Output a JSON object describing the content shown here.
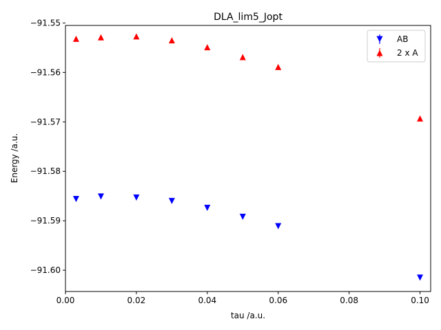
{
  "chart_data": {
    "type": "scatter",
    "title": "DLA_lim5_Jopt",
    "xlabel": "tau /a.u.",
    "ylabel": "Energy /a.u.",
    "xlim": [
      0.0,
      0.103
    ],
    "ylim": [
      -91.6043,
      -91.5505
    ],
    "x_ticks": [
      0.0,
      0.02,
      0.04,
      0.06,
      0.08,
      0.1
    ],
    "x_tick_labels": [
      "0.00",
      "0.02",
      "0.04",
      "0.06",
      "0.08",
      "0.10"
    ],
    "y_ticks": [
      -91.55,
      -91.56,
      -91.57,
      -91.58,
      -91.59,
      -91.6
    ],
    "y_tick_labels": [
      "−91.55",
      "−91.56",
      "−91.57",
      "−91.58",
      "−91.59",
      "−91.60"
    ],
    "grid": false,
    "legend_position": "upper right",
    "series": [
      {
        "name": "AB",
        "marker": "triangle-down",
        "color": "#0000ff",
        "points": [
          {
            "x": 0.003,
            "y": -91.5856
          },
          {
            "x": 0.01,
            "y": -91.5851
          },
          {
            "x": 0.02,
            "y": -91.5853
          },
          {
            "x": 0.03,
            "y": -91.586
          },
          {
            "x": 0.04,
            "y": -91.5874
          },
          {
            "x": 0.05,
            "y": -91.5892
          },
          {
            "x": 0.06,
            "y": -91.5911
          },
          {
            "x": 0.1,
            "y": -91.6015
          }
        ]
      },
      {
        "name": "2 x A",
        "marker": "triangle-up",
        "color": "#ff0000",
        "points": [
          {
            "x": 0.003,
            "y": -91.5532
          },
          {
            "x": 0.01,
            "y": -91.5529
          },
          {
            "x": 0.02,
            "y": -91.5527
          },
          {
            "x": 0.03,
            "y": -91.5535
          },
          {
            "x": 0.04,
            "y": -91.5549
          },
          {
            "x": 0.05,
            "y": -91.5569
          },
          {
            "x": 0.06,
            "y": -91.5589
          },
          {
            "x": 0.1,
            "y": -91.5693
          }
        ]
      }
    ]
  }
}
